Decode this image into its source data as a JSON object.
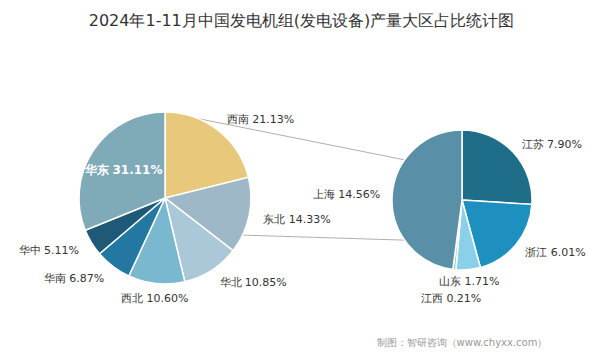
{
  "chart_data": [
    {
      "type": "pie",
      "title": "2024年1-11月中国发电机组(发电设备)产量大区占比统计图",
      "categories": [
        "西南",
        "东北",
        "华北",
        "西北",
        "华南",
        "华中",
        "华东"
      ],
      "values": [
        21.13,
        14.33,
        10.85,
        10.6,
        6.87,
        5.11,
        31.11
      ],
      "value_labels": [
        "21.13%",
        "14.33%",
        "10.85%",
        "10.60%",
        "6.87%",
        "5.11%",
        "31.11%"
      ],
      "colors": [
        "#e8c87a",
        "#9eb8c8",
        "#aac8d8",
        "#7ab8d0",
        "#2278a0",
        "#1e5a78",
        "#7faab8"
      ],
      "data_labels": true,
      "annotations": [
        "制图：智研咨询（www.chyxx.com）"
      ]
    },
    {
      "type": "pie",
      "categories": [
        "江苏",
        "浙江",
        "山东",
        "江西",
        "上海"
      ],
      "values": [
        7.9,
        6.01,
        1.71,
        0.21,
        14.56
      ],
      "value_labels": [
        "7.90%",
        "6.01%",
        "1.71%",
        "0.21%",
        "14.56%"
      ],
      "colors": [
        "#1e6e8a",
        "#1e90c0",
        "#8ad0e8",
        "#a0d0b8",
        "#5a8fa8"
      ],
      "data_labels": true
    }
  ]
}
